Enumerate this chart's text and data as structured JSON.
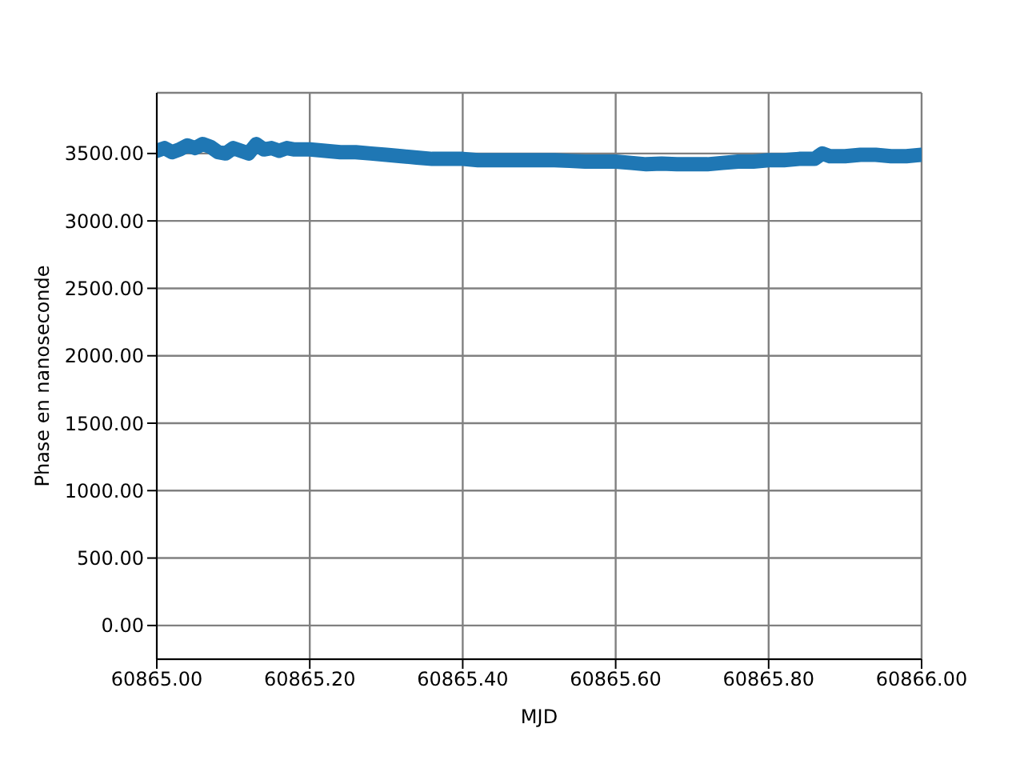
{
  "chart_data": {
    "type": "line",
    "xlabel": "MJD",
    "ylabel": "Phase en nanoseconde",
    "x": [
      60865.0,
      60865.01,
      60865.02,
      60865.03,
      60865.04,
      60865.05,
      60865.06,
      60865.07,
      60865.08,
      60865.09,
      60865.1,
      60865.11,
      60865.12,
      60865.13,
      60865.14,
      60865.15,
      60865.16,
      60865.17,
      60865.18,
      60865.2,
      60865.22,
      60865.24,
      60865.26,
      60865.28,
      60865.3,
      60865.32,
      60865.34,
      60865.36,
      60865.38,
      60865.4,
      60865.42,
      60865.44,
      60865.46,
      60865.48,
      60865.5,
      60865.52,
      60865.54,
      60865.56,
      60865.58,
      60865.6,
      60865.62,
      60865.64,
      60865.66,
      60865.68,
      60865.7,
      60865.72,
      60865.74,
      60865.76,
      60865.78,
      60865.8,
      60865.82,
      60865.84,
      60865.86,
      60865.87,
      60865.88,
      60865.9,
      60865.92,
      60865.94,
      60865.96,
      60865.98,
      60866.0
    ],
    "series": [
      {
        "color": "#1f77b4",
        "values": [
          3520,
          3540,
          3510,
          3530,
          3560,
          3540,
          3570,
          3550,
          3510,
          3500,
          3540,
          3520,
          3500,
          3570,
          3530,
          3540,
          3520,
          3540,
          3530,
          3530,
          3520,
          3510,
          3510,
          3500,
          3490,
          3480,
          3470,
          3460,
          3460,
          3460,
          3450,
          3450,
          3450,
          3450,
          3450,
          3450,
          3445,
          3440,
          3440,
          3440,
          3430,
          3420,
          3425,
          3420,
          3420,
          3420,
          3430,
          3440,
          3440,
          3450,
          3450,
          3460,
          3460,
          3500,
          3480,
          3480,
          3490,
          3490,
          3480,
          3480,
          3490
        ]
      }
    ],
    "xlim": [
      60865.0,
      60866.0
    ],
    "xticks": [
      {
        "value": 60865.0,
        "label": "60865.00"
      },
      {
        "value": 60865.2,
        "label": "60865.20"
      },
      {
        "value": 60865.4,
        "label": "60865.40"
      },
      {
        "value": 60865.6,
        "label": "60865.60"
      },
      {
        "value": 60865.8,
        "label": "60865.80"
      },
      {
        "value": 60866.0,
        "label": "60866.00"
      }
    ],
    "ylim": [
      -250,
      3950
    ],
    "yticks": [
      {
        "value": 0,
        "label": "0.00"
      },
      {
        "value": 500,
        "label": "500.00"
      },
      {
        "value": 1000,
        "label": "1000.00"
      },
      {
        "value": 1500,
        "label": "1500.00"
      },
      {
        "value": 2000,
        "label": "2000.00"
      },
      {
        "value": 2500,
        "label": "2500.00"
      },
      {
        "value": 3000,
        "label": "3000.00"
      },
      {
        "value": 3500,
        "label": "3500.00"
      }
    ],
    "grid": true,
    "legend": false,
    "marker": "none",
    "line_style": "solid"
  }
}
